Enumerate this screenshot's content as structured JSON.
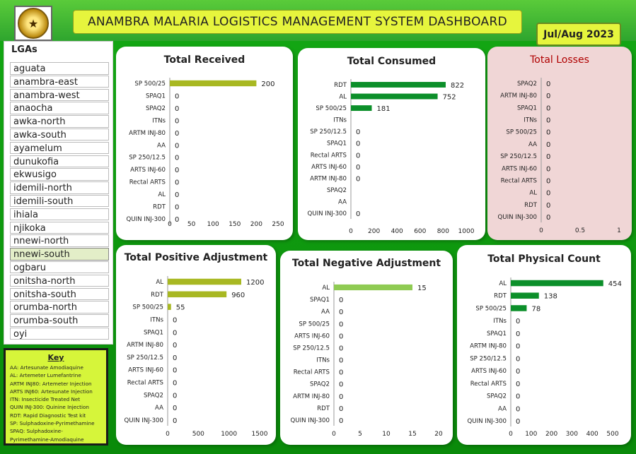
{
  "header": {
    "title": "ANAMBRA MALARIA LOGISTICS MANAGEMENT SYSTEM DASHBOARD",
    "period": "Jul/Aug 2023",
    "logo_icon": "state-seal-icon"
  },
  "lgas": {
    "title": "LGAs",
    "selected": "nnewi-south",
    "items": [
      "aguata",
      "anambra-east",
      "anambra-west",
      "anaocha",
      "awka-north",
      "awka-south",
      "ayamelum",
      "dunukofia",
      "ekwusigo",
      "idemili-north",
      "idemili-south",
      "ihiala",
      "njikoka",
      "nnewi-north",
      "nnewi-south",
      "ogbaru",
      "onitsha-north",
      "onitsha-south",
      "orumba-north",
      "orumba-south",
      "oyi"
    ]
  },
  "key": {
    "title": "Key",
    "lines": [
      "AA: Artesunate Amodiaquine",
      "AL: Artemeter Lumefantrine",
      "ARTM INJ80: Artemeter Injection",
      "ARTS INJ60: Artesunate Injection",
      "ITN: Insecticide Treated Net",
      "QUIN INJ-300: Quinine Injection",
      "RDT: Rapid Diagnostic Test kit",
      "SP: Sulphadoxine-Pyrimethamine",
      "SPAQ: Sulphadoxine-",
      "Pyrimethamine-Amodiaquine"
    ]
  },
  "colors": {
    "dark_green": "#0c8f2a",
    "olive": "#a8b822",
    "light_green": "#8fcb53",
    "loss_title": "#b00000"
  },
  "chart_data": [
    {
      "id": "total-received",
      "title": "Total Received",
      "type": "bar",
      "orientation": "horizontal",
      "categories": [
        "SP 500/25",
        "SPAQ1",
        "SPAQ2",
        "ITNs",
        "ARTM INJ-80",
        "AA",
        "SP 250/12.5",
        "ARTS INJ-60",
        "Rectal ARTS",
        "AL",
        "RDT",
        "QUIN INJ-300"
      ],
      "values": [
        200,
        0,
        0,
        0,
        0,
        0,
        0,
        0,
        0,
        0,
        0,
        0
      ],
      "xlim": [
        0,
        250
      ],
      "xticks": [
        0,
        50,
        100,
        150,
        200,
        250
      ],
      "bar_color": "#a8b822",
      "data_labels": true
    },
    {
      "id": "total-consumed",
      "title": "Total Consumed",
      "type": "bar",
      "orientation": "horizontal",
      "categories": [
        "RDT",
        "AL",
        "SP 500/25",
        "ITNs",
        "SP 250/12.5",
        "SPAQ1",
        "Rectal ARTS",
        "ARTS INJ-60",
        "ARTM INJ-80",
        "SPAQ2",
        "AA",
        "QUIN INJ-300"
      ],
      "values": [
        822,
        752,
        181,
        null,
        0,
        0,
        0,
        0,
        0,
        null,
        null,
        0
      ],
      "xlim": [
        0,
        1000
      ],
      "xticks": [
        0,
        200,
        400,
        600,
        800,
        1000
      ],
      "bar_color": "#0c8f2a",
      "data_labels": true
    },
    {
      "id": "total-losses",
      "title": "Total Losses",
      "type": "bar",
      "orientation": "horizontal",
      "categories": [
        "SPAQ2",
        "ARTM INJ-80",
        "SPAQ1",
        "ITNs",
        "SP 500/25",
        "AA",
        "SP 250/12.5",
        "ARTS INJ-60",
        "Rectal ARTS",
        "AL",
        "RDT",
        "QUIN INJ-300"
      ],
      "values": [
        0,
        0,
        0,
        0,
        0,
        0,
        0,
        0,
        0,
        0,
        0,
        0
      ],
      "xlim": [
        0,
        1
      ],
      "xticks": [
        0,
        0.5,
        1
      ],
      "bar_color": "#0c8f2a",
      "data_labels": true
    },
    {
      "id": "total-positive-adjustment",
      "title": "Total Positive Adjustment",
      "type": "bar",
      "orientation": "horizontal",
      "categories": [
        "AL",
        "RDT",
        "SP 500/25",
        "ITNs",
        "SPAQ1",
        "ARTM INJ-80",
        "SP 250/12.5",
        "ARTS INJ-60",
        "Rectal ARTS",
        "SPAQ2",
        "AA",
        "QUIN INJ-300"
      ],
      "values": [
        1200,
        960,
        55,
        0,
        0,
        0,
        0,
        0,
        0,
        0,
        0,
        0
      ],
      "xlim": [
        0,
        1500
      ],
      "xticks": [
        0,
        500,
        1000,
        1500
      ],
      "bar_color": "#a8b822",
      "data_labels": true
    },
    {
      "id": "total-negative-adjustment",
      "title": "Total Negative Adjustment",
      "type": "bar",
      "orientation": "horizontal",
      "categories": [
        "AL",
        "SPAQ1",
        "AA",
        "SP 500/25",
        "ARTS INJ-60",
        "SP 250/12.5",
        "ITNs",
        "Rectal ARTS",
        "SPAQ2",
        "ARTM INJ-80",
        "RDT",
        "QUIN INJ-300"
      ],
      "values": [
        15,
        0,
        0,
        0,
        0,
        0,
        0,
        0,
        0,
        0,
        0,
        0
      ],
      "xlim": [
        0,
        20
      ],
      "xticks": [
        0,
        5,
        10,
        15,
        20
      ],
      "bar_color": "#8fcb53",
      "data_labels": true
    },
    {
      "id": "total-physical-count",
      "title": "Total Physical Count",
      "type": "bar",
      "orientation": "horizontal",
      "categories": [
        "AL",
        "RDT",
        "SP 500/25",
        "ITNs",
        "SPAQ1",
        "ARTM INJ-80",
        "SP 250/12.5",
        "ARTS INJ-60",
        "Rectal ARTS",
        "SPAQ2",
        "AA",
        "QUIN INJ-300"
      ],
      "values": [
        454,
        138,
        78,
        0,
        0,
        0,
        0,
        0,
        0,
        0,
        0,
        0
      ],
      "xlim": [
        0,
        500
      ],
      "xticks": [
        0,
        100,
        200,
        300,
        400,
        500
      ],
      "bar_color": "#0c8f2a",
      "data_labels": true
    }
  ]
}
